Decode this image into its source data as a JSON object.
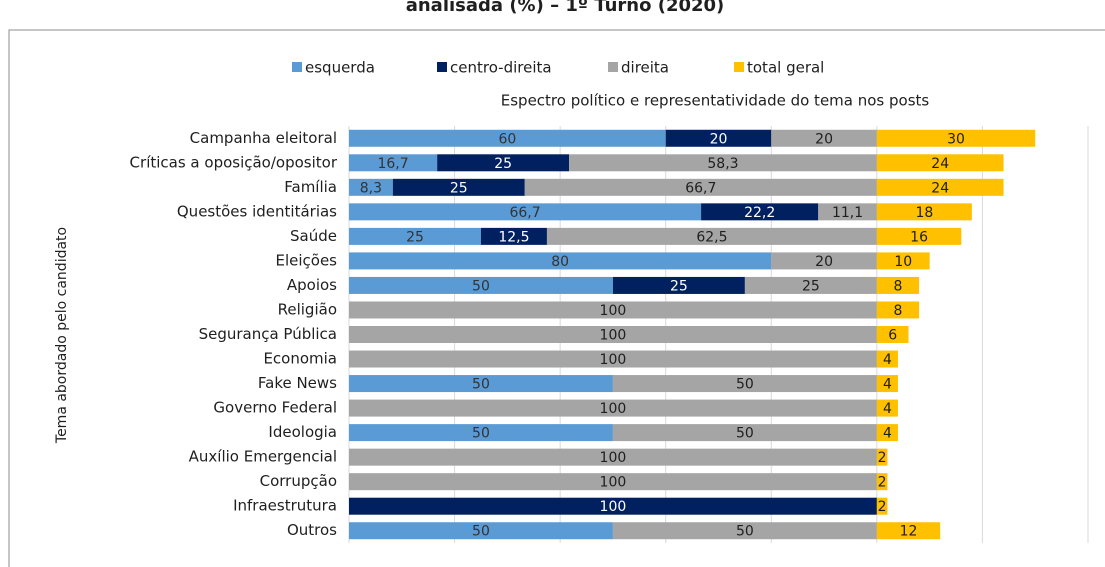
{
  "chart_data": {
    "type": "stacked-bar-horizontal",
    "title": "analisada (%) – 1º Turno (2020)",
    "subtitle": "Espectro político e representatividade do tema nos posts",
    "y_label": "Tema abordado pelo candidato",
    "categories": [
      "Campanha eleitoral",
      "Críticas a oposição/opositor",
      "Família",
      "Questões identitárias",
      "Saúde",
      "Eleições",
      "Apoios",
      "Religião",
      "Segurança Pública",
      "Economia",
      "Fake News",
      "Governo Federal",
      "Ideologia",
      "Auxílio Emergencial",
      "Corrupção",
      "Infraestrutura",
      "Outros"
    ],
    "series": [
      {
        "name": "esquerda",
        "color": "#5b9bd5",
        "label_color": "#333333",
        "values": [
          60,
          16.7,
          8.3,
          66.7,
          25,
          80,
          50,
          null,
          null,
          null,
          50,
          null,
          50,
          null,
          null,
          null,
          50
        ],
        "value_labels": [
          "60",
          "16,7",
          "8,3",
          "66,7",
          "25",
          "80",
          "50",
          null,
          null,
          null,
          "50",
          null,
          "50",
          null,
          null,
          null,
          "50"
        ]
      },
      {
        "name": "centro-direita",
        "color": "#002060",
        "label_color": "#ffffff",
        "values": [
          20,
          25,
          25,
          22.2,
          12.5,
          null,
          25,
          null,
          null,
          null,
          null,
          null,
          null,
          null,
          null,
          100,
          null
        ],
        "value_labels": [
          "20",
          "25",
          "25",
          "22,2",
          "12,5",
          null,
          "25",
          null,
          null,
          null,
          null,
          null,
          null,
          null,
          null,
          "100",
          null
        ]
      },
      {
        "name": "direita",
        "color": "#a5a5a5",
        "label_color": "#1f1f1f",
        "values": [
          20,
          58.3,
          66.7,
          11.1,
          62.5,
          20,
          25,
          100,
          100,
          100,
          50,
          100,
          50,
          100,
          100,
          null,
          50
        ],
        "value_labels": [
          "20",
          "58,3",
          "66,7",
          "11,1",
          "62,5",
          "20",
          "25",
          "100",
          "100",
          "100",
          "50",
          "100",
          "50",
          "100",
          "100",
          null,
          "50"
        ]
      },
      {
        "name": "total geral",
        "color": "#ffc000",
        "label_color": "#1f1f1f",
        "values": [
          30,
          24,
          24,
          18,
          16,
          10,
          8,
          8,
          6,
          4,
          4,
          4,
          4,
          2,
          2,
          2,
          12
        ],
        "value_labels": [
          "30",
          "24",
          "24",
          "18",
          "16",
          "10",
          "8",
          "8",
          "6",
          "4",
          "4",
          "4",
          "4",
          "2",
          "2",
          "2",
          "12"
        ]
      }
    ],
    "xlim": [
      0,
      140
    ],
    "xticks": [
      0,
      20,
      40,
      60,
      80,
      100,
      120,
      140
    ],
    "grid": true,
    "legend": "top"
  }
}
